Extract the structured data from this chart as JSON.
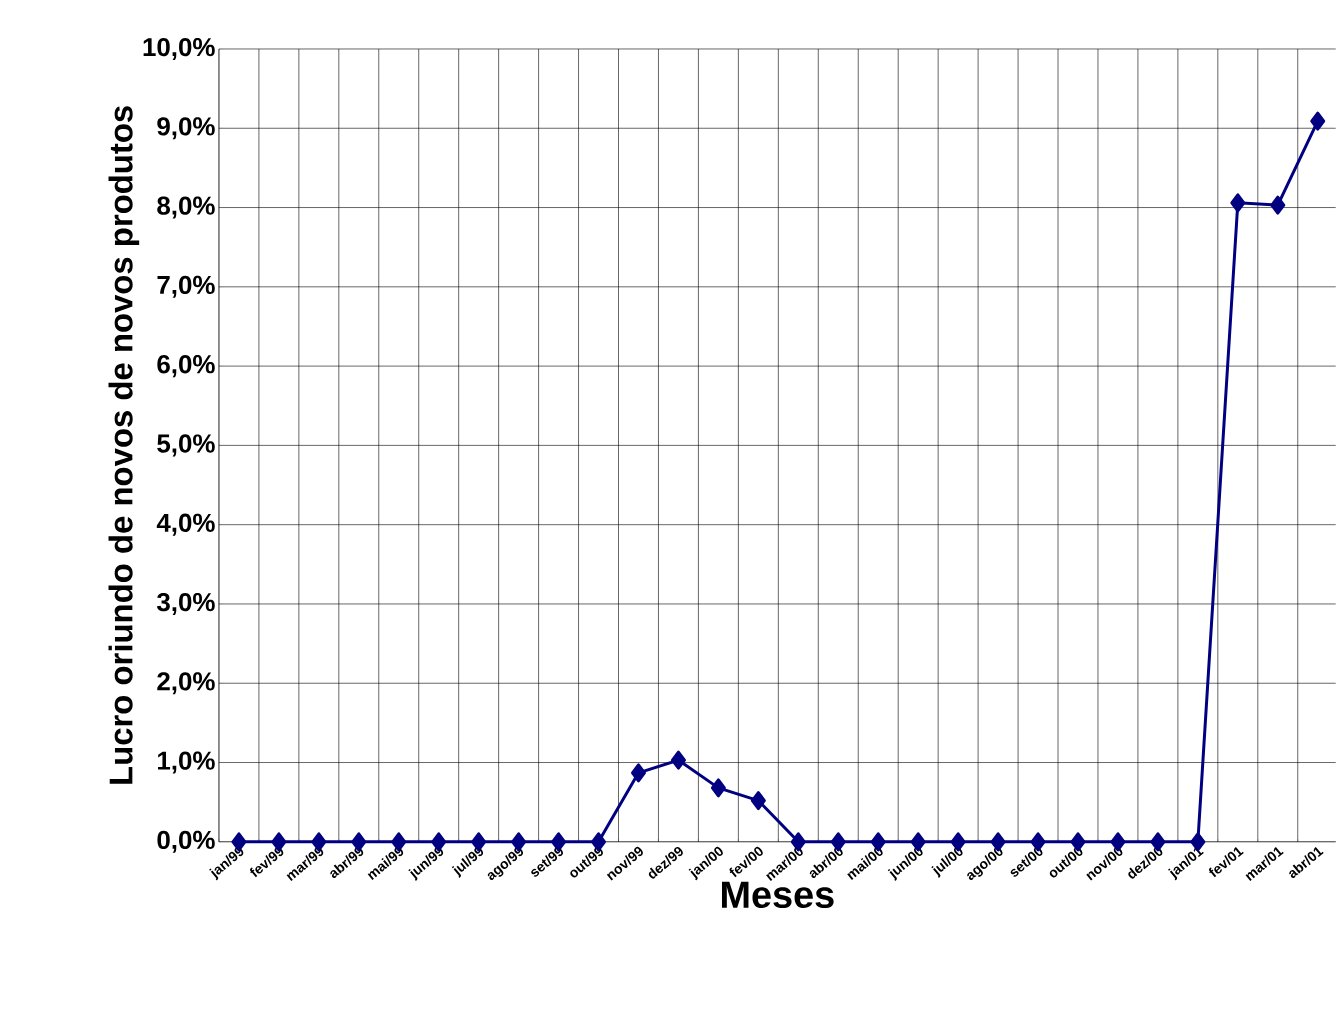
{
  "chart_data": {
    "type": "line",
    "xlabel": "Meses",
    "ylabel": "Lucro oriundo de novos de novos produtos",
    "categories": [
      "jan/99",
      "fev/99",
      "mar/99",
      "abr/99",
      "mai/99",
      "jun/99",
      "jul/99",
      "ago/99",
      "set/99",
      "out/99",
      "nov/99",
      "dez/99",
      "jan/00",
      "fev/00",
      "mar/00",
      "abr/00",
      "mai/00",
      "jun/00",
      "jul/00",
      "ago/00",
      "set/00",
      "out/00",
      "nov/00",
      "dez/00",
      "jan/01",
      "fev/01",
      "mar/01",
      "abr/01"
    ],
    "values": [
      0,
      0,
      0,
      0,
      0,
      0,
      0,
      0,
      0,
      0,
      0.87,
      1.03,
      0.68,
      0.52,
      0,
      0,
      0,
      0,
      0,
      0,
      0,
      0,
      0,
      0,
      0,
      8.06,
      8.03,
      9.09
    ],
    "color": "#000080",
    "marker": "diamond",
    "line_style": "solid",
    "grid": true,
    "ylim": [
      0,
      10
    ],
    "yticks": [
      {
        "value": 0,
        "label": "0,0%"
      },
      {
        "value": 1,
        "label": "1,0%"
      },
      {
        "value": 2,
        "label": "2,0%"
      },
      {
        "value": 3,
        "label": "3,0%"
      },
      {
        "value": 4,
        "label": "4,0%"
      },
      {
        "value": 5,
        "label": "5,0%"
      },
      {
        "value": 6,
        "label": "6,0%"
      },
      {
        "value": 7,
        "label": "7,0%"
      },
      {
        "value": 8,
        "label": "8,0%"
      },
      {
        "value": 9,
        "label": "9,0%"
      },
      {
        "value": 10,
        "label": "10,0%"
      }
    ]
  }
}
